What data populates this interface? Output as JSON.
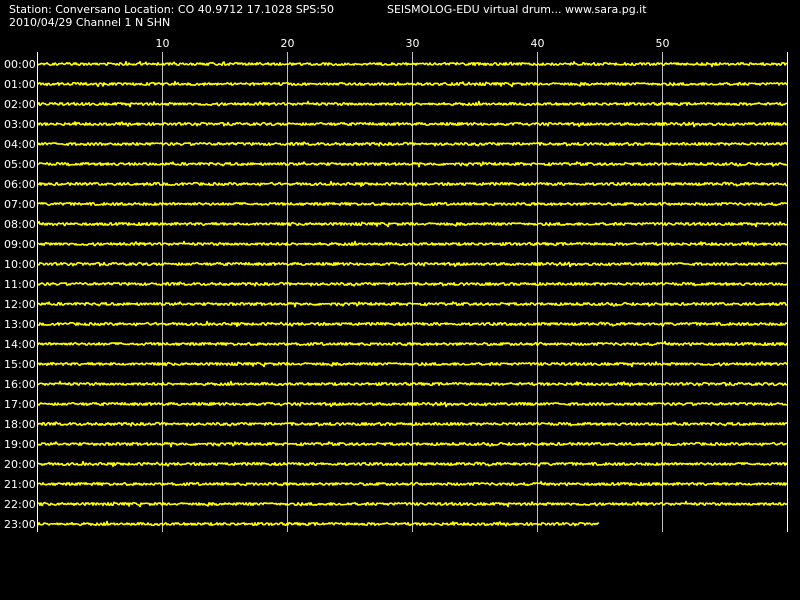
{
  "header": {
    "station_info": "Station: Conversano Location: CO 40.9712 17.1028 SPS:50",
    "app_credit": "SEISMOLOG-EDU virtual drum... www.sara.pg.it",
    "date_channel": "2010/04/29  Channel 1 N SHN"
  },
  "drum": {
    "background_color": "#000000",
    "trace_color": "#ffff00",
    "axis_color": "#ffffff",
    "grid_color": "#c0c0c0",
    "minute_span": 60,
    "minute_ticks": [
      "10",
      "20",
      "30",
      "40",
      "50"
    ],
    "hour_labels": [
      "00:00",
      "01:00",
      "02:00",
      "03:00",
      "04:00",
      "05:00",
      "06:00",
      "07:00",
      "08:00",
      "09:00",
      "10:00",
      "11:00",
      "12:00",
      "13:00",
      "14:00",
      "15:00",
      "16:00",
      "17:00",
      "18:00",
      "19:00",
      "20:00",
      "21:00",
      "22:00",
      "23:00"
    ],
    "last_trace_end_minute": 45
  }
}
